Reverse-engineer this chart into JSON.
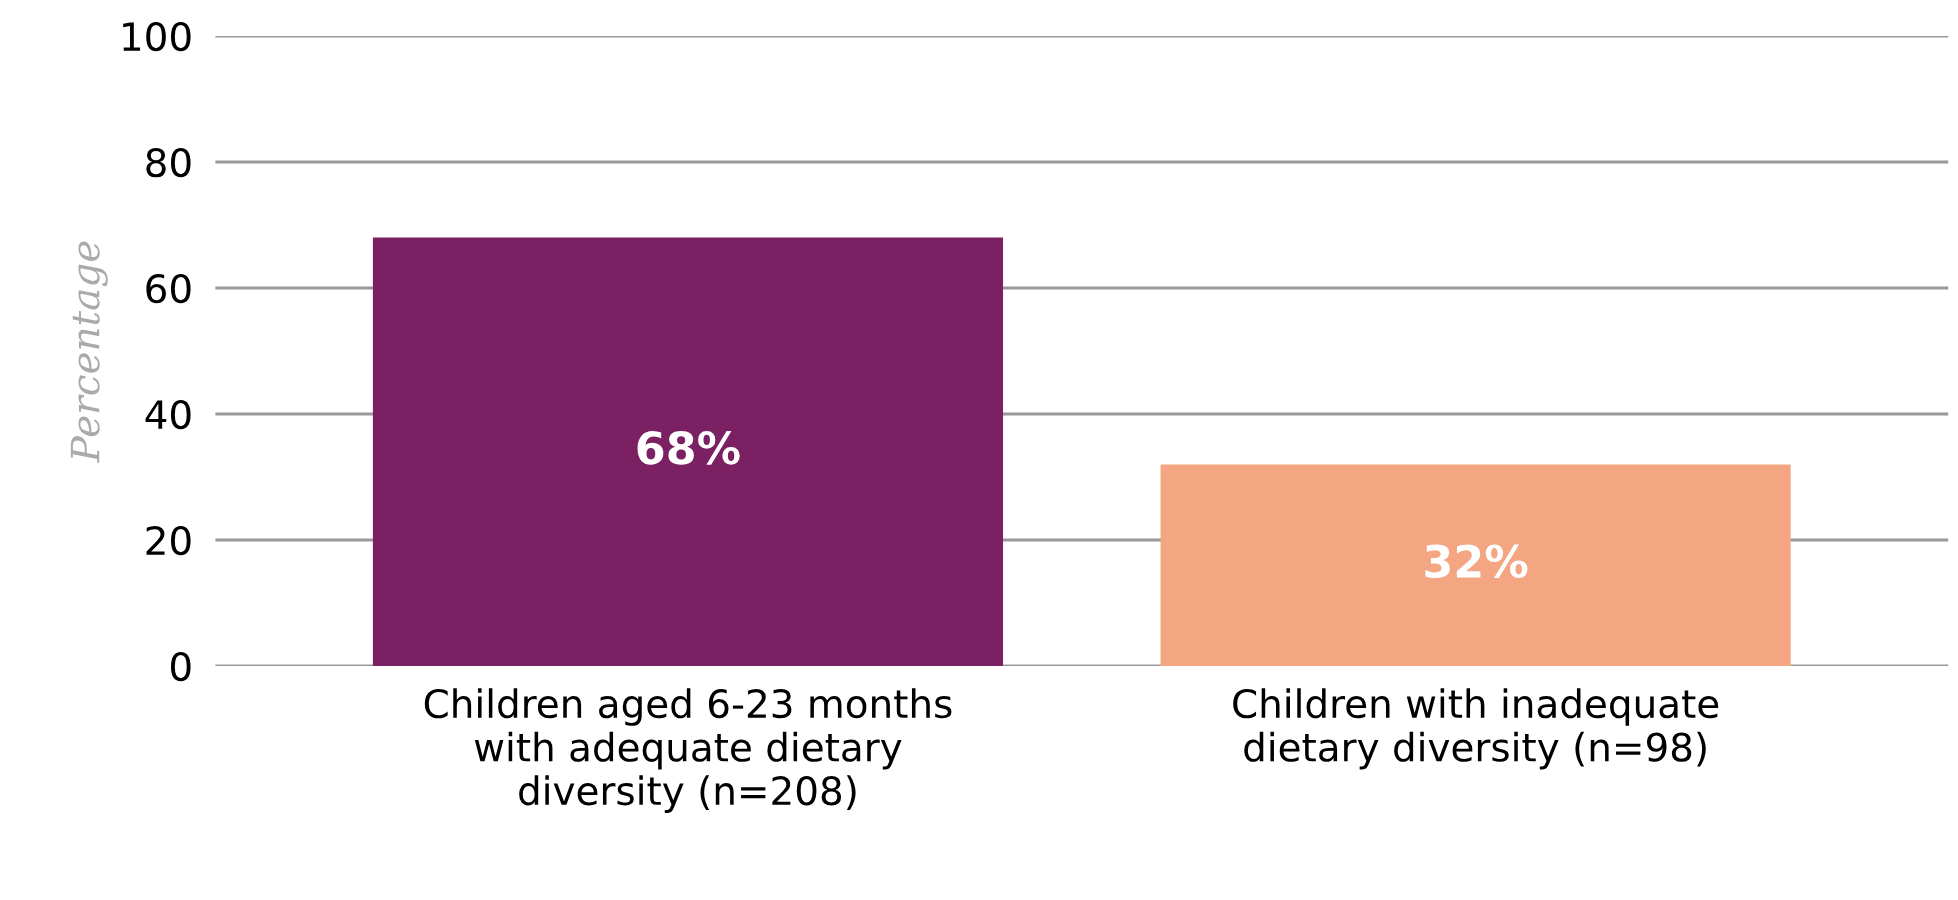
{
  "chart_data": {
    "type": "bar",
    "ylabel": "Percentage",
    "categories": [
      "Children aged 6-23 months\nwith adequate dietary\ndiversity (n=208)",
      "Children with inadequate\ndietary diversity (n=98)"
    ],
    "values": [
      68,
      32
    ],
    "colors": [
      "#7b2163",
      "#f4a582"
    ],
    "value_labels": [
      "68%",
      "32%"
    ],
    "ylim": [
      0,
      100
    ],
    "yticks": [
      0,
      20,
      40,
      60,
      80,
      100
    ],
    "grid": "y"
  }
}
